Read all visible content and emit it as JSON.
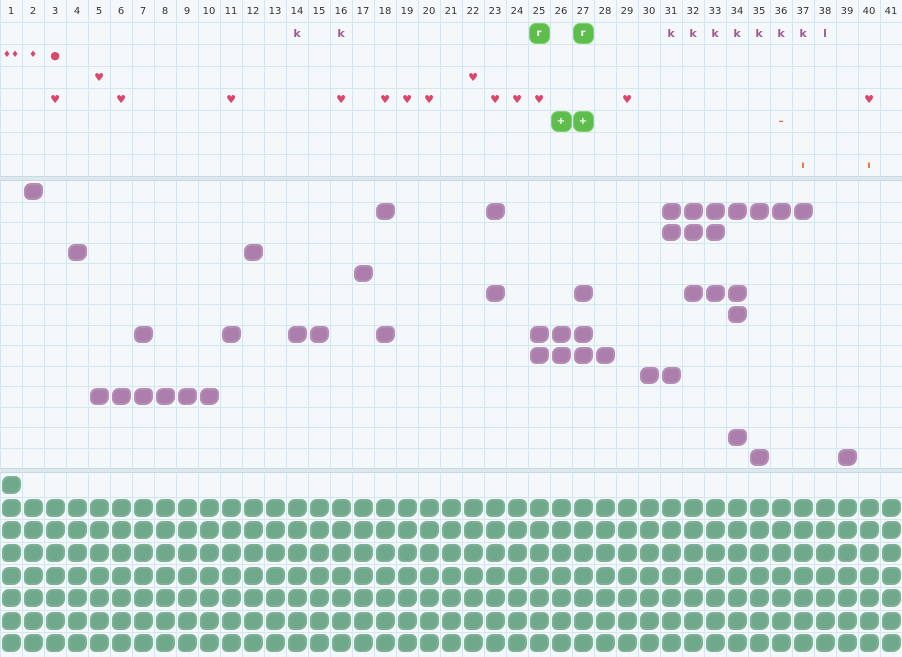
{
  "columns": [
    "1",
    "2",
    "3",
    "4",
    "5",
    "6",
    "7",
    "8",
    "9",
    "10",
    "11",
    "12",
    "13",
    "14",
    "15",
    "16",
    "17",
    "18",
    "19",
    "20",
    "21",
    "22",
    "23",
    "24",
    "25",
    "26",
    "27",
    "28",
    "29",
    "30",
    "31",
    "32",
    "33",
    "34",
    "35",
    "36",
    "37",
    "38",
    "39",
    "40",
    "41"
  ],
  "top_section": {
    "row1": [
      {
        "col": 14,
        "type": "k",
        "text": "k"
      },
      {
        "col": 16,
        "type": "k",
        "text": "k"
      },
      {
        "col": 25,
        "type": "green",
        "text": "r"
      },
      {
        "col": 27,
        "type": "green",
        "text": "r"
      },
      {
        "col": 31,
        "type": "k",
        "text": "k"
      },
      {
        "col": 32,
        "type": "k",
        "text": "k"
      },
      {
        "col": 33,
        "type": "k",
        "text": "k"
      },
      {
        "col": 34,
        "type": "k",
        "text": "k"
      },
      {
        "col": 35,
        "type": "k",
        "text": "k"
      },
      {
        "col": 36,
        "type": "k",
        "text": "k"
      },
      {
        "col": 37,
        "type": "k",
        "text": "k"
      },
      {
        "col": 38,
        "type": "l",
        "text": "l"
      }
    ],
    "row2": [
      {
        "col": 1,
        "type": "drop",
        "text": "♦♦"
      },
      {
        "col": 2,
        "type": "drop",
        "text": "♦"
      },
      {
        "col": 3,
        "type": "dot",
        "text": "●"
      }
    ],
    "row3": [
      {
        "col": 5,
        "type": "heart",
        "text": "♥"
      },
      {
        "col": 22,
        "type": "heart",
        "text": "♥"
      }
    ],
    "row4": [
      {
        "col": 3,
        "type": "heart",
        "text": "♥"
      },
      {
        "col": 6,
        "type": "heart",
        "text": "♥"
      },
      {
        "col": 11,
        "type": "heart",
        "text": "♥"
      },
      {
        "col": 16,
        "type": "heart",
        "text": "♥"
      },
      {
        "col": 18,
        "type": "heart",
        "text": "♥"
      },
      {
        "col": 19,
        "type": "heart",
        "text": "♥"
      },
      {
        "col": 20,
        "type": "heart",
        "text": "♥"
      },
      {
        "col": 23,
        "type": "heart",
        "text": "♥"
      },
      {
        "col": 24,
        "type": "heart",
        "text": "♥"
      },
      {
        "col": 25,
        "type": "heart",
        "text": "♥"
      },
      {
        "col": 29,
        "type": "heart",
        "text": "♥"
      },
      {
        "col": 40,
        "type": "heart",
        "text": "♥"
      }
    ],
    "row5": [
      {
        "col": 26,
        "type": "green",
        "text": "+"
      },
      {
        "col": 27,
        "type": "green",
        "text": "+"
      },
      {
        "col": 36,
        "type": "orange",
        "text": "–"
      }
    ],
    "row6": [],
    "row7": [
      {
        "col": 37,
        "type": "orange",
        "text": "ı"
      },
      {
        "col": 40,
        "type": "orange",
        "text": "ı"
      }
    ]
  },
  "middle_section": {
    "rows": [
      [
        2
      ],
      [
        18,
        23,
        31,
        32,
        33,
        34,
        35,
        36,
        37
      ],
      [
        31,
        32,
        33
      ],
      [
        4,
        12
      ],
      [
        17
      ],
      [
        23,
        27,
        32,
        33,
        34
      ],
      [
        34
      ],
      [
        7,
        11,
        14,
        15,
        18,
        25,
        26,
        27
      ],
      [
        25,
        26,
        27,
        28
      ],
      [
        30,
        31
      ],
      [
        5,
        6,
        7,
        8,
        9,
        10
      ],
      [],
      [
        34
      ],
      [
        35,
        39
      ]
    ]
  },
  "bottom_section": {
    "first_row_cols": [
      1
    ],
    "full_rows": 7
  }
}
